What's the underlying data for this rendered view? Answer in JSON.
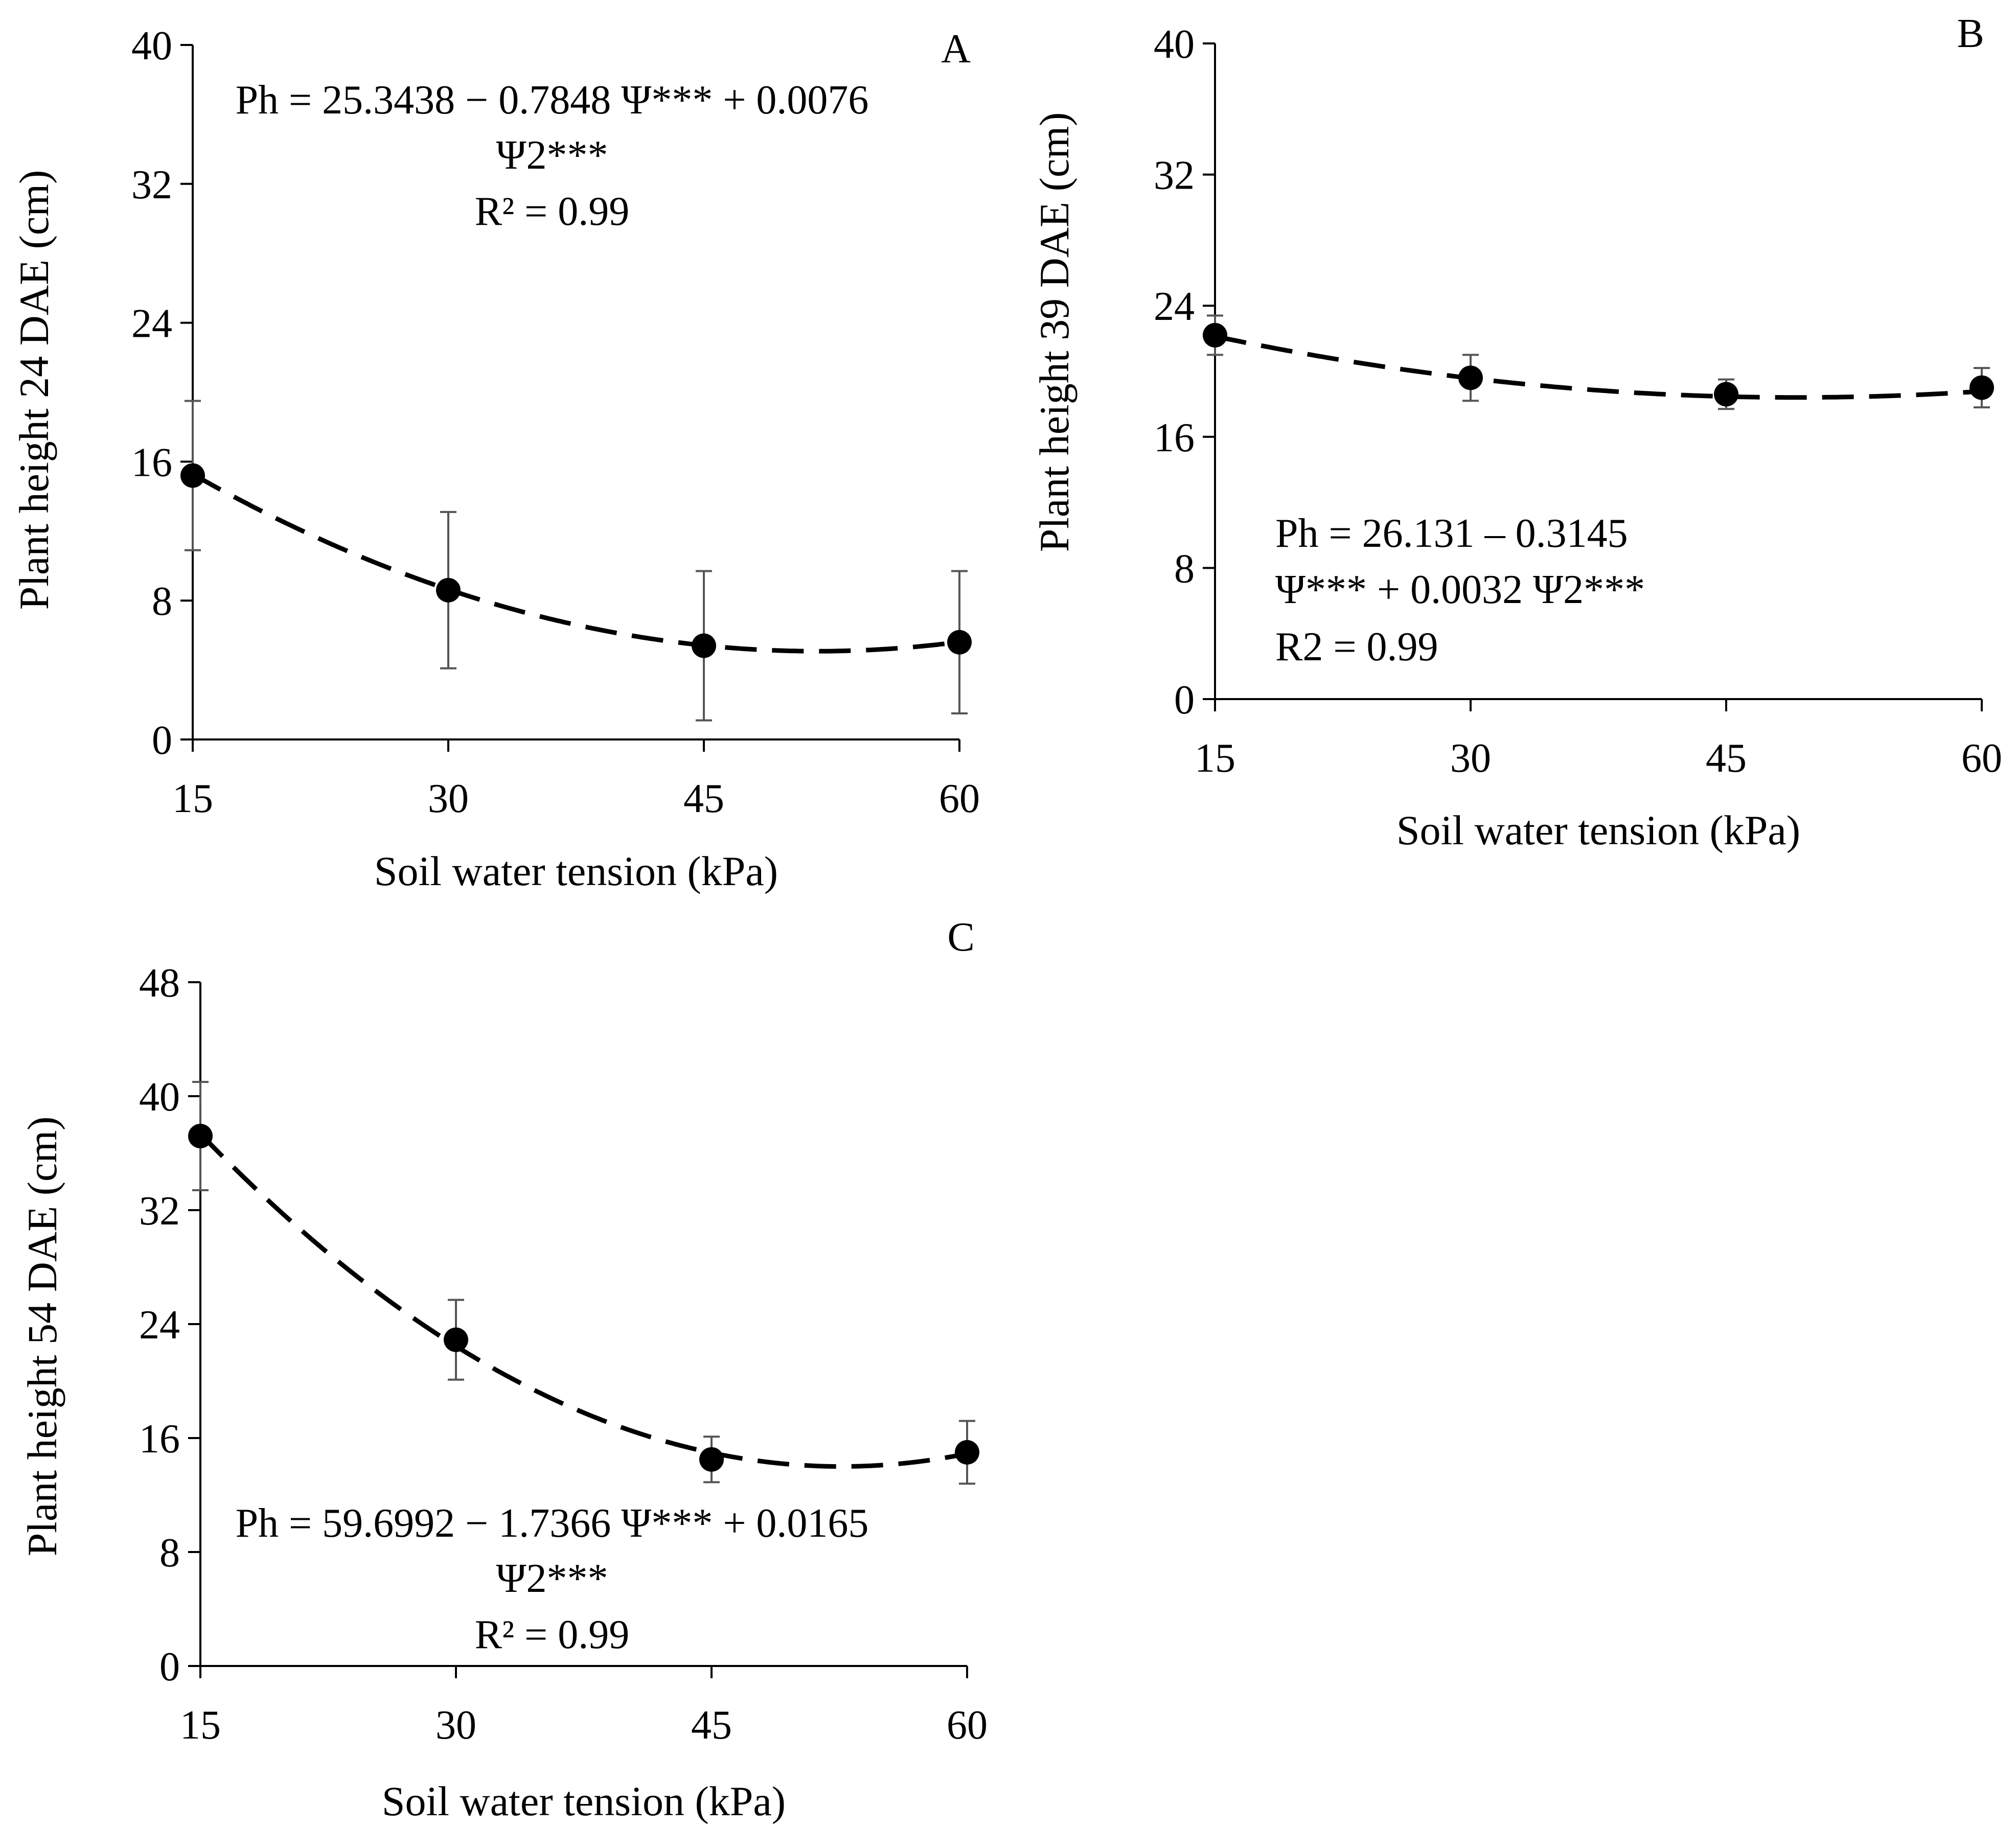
{
  "chart_data": [
    {
      "panel": "A",
      "type": "scatter",
      "x": [
        15,
        30,
        45,
        60
      ],
      "values": [
        15.2,
        8.6,
        5.4,
        5.6
      ],
      "error": [
        4.3,
        4.5,
        4.3,
        4.1
      ],
      "fit": {
        "a": 25.3438,
        "b": -0.7848,
        "c": 0.0076
      },
      "xlabel": "Soil water tension (kPa)",
      "ylabel": "Plant height 24 DAE (cm)",
      "xticks": [
        "15",
        "30",
        "45",
        "60"
      ],
      "yticks": [
        "0",
        "8",
        "16",
        "24",
        "32",
        "40"
      ],
      "ylim": [
        0,
        40
      ],
      "equation_lines": [
        "Ph = 25.3438 − 0.7848 Ψ*** + 0.0076",
        "Ψ2***",
        "R² = 0.99"
      ]
    },
    {
      "panel": "B",
      "type": "scatter",
      "x": [
        15,
        30,
        45,
        60
      ],
      "values": [
        22.2,
        19.6,
        18.6,
        19.0
      ],
      "error": [
        1.2,
        1.4,
        0.9,
        1.2
      ],
      "fit": {
        "a": 26.131,
        "b": -0.3145,
        "c": 0.0032
      },
      "xlabel": "Soil water tension (kPa)",
      "ylabel": "Plant height 39 DAE (cm)",
      "xticks": [
        "15",
        "30",
        "45",
        "60"
      ],
      "yticks": [
        "0",
        "8",
        "16",
        "24",
        "32",
        "40"
      ],
      "ylim": [
        0,
        40
      ],
      "equation_lines": [
        "Ph = 26.131 – 0.3145",
        "Ψ*** + 0.0032 Ψ2***",
        "R2 = 0.99"
      ]
    },
    {
      "panel": "C",
      "type": "scatter",
      "x": [
        15,
        30,
        45,
        60
      ],
      "values": [
        37.2,
        22.9,
        14.5,
        15.0
      ],
      "error": [
        3.8,
        2.8,
        1.6,
        2.2
      ],
      "fit": {
        "a": 59.6992,
        "b": -1.7366,
        "c": 0.0165
      },
      "xlabel": "Soil water tension (kPa)",
      "ylabel": "Plant height 54 DAE (cm)",
      "xticks": [
        "15",
        "30",
        "45",
        "60"
      ],
      "yticks": [
        "0",
        "8",
        "16",
        "24",
        "32",
        "40",
        "48"
      ],
      "ylim": [
        0,
        48
      ],
      "equation_lines": [
        "Ph = 59.6992 − 1.7366 Ψ*** + 0.0165",
        "Ψ2***",
        "R² = 0.99"
      ]
    }
  ],
  "colors": {
    "marker": "#000000",
    "fit_line": "#000000",
    "error_bar": "#555555",
    "axis": "#000000"
  }
}
